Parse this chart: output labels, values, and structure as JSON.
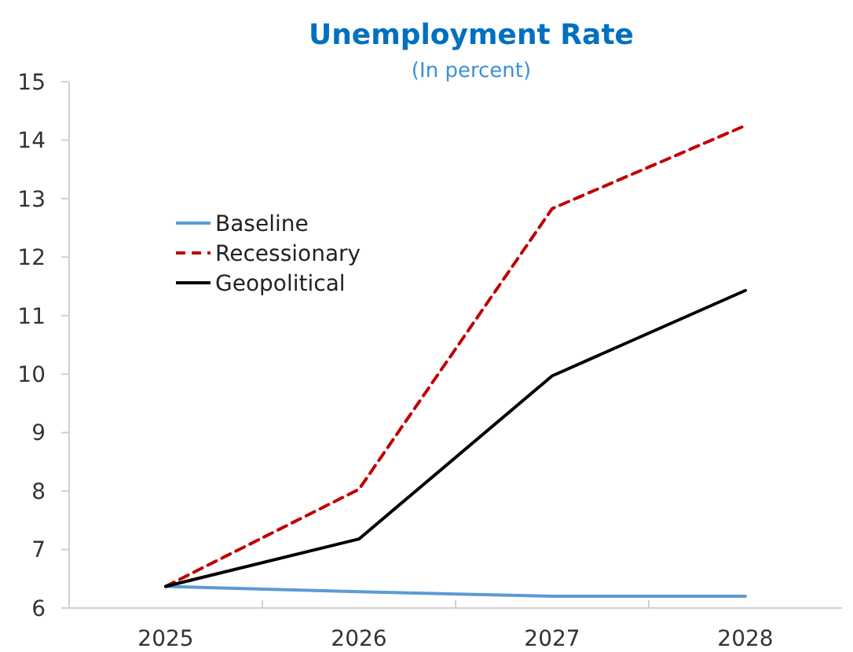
{
  "chart_data": {
    "type": "line",
    "title": "Unemployment Rate",
    "subtitle": "(In percent)",
    "categories": [
      "2025",
      "2026",
      "2027",
      "2028"
    ],
    "series": [
      {
        "name": "Baseline",
        "color": "#5b9bd5",
        "values": [
          6.37,
          6.28,
          6.2,
          6.2
        ],
        "line_style": "solid"
      },
      {
        "name": "Recessionary",
        "color": "#c00000",
        "values": [
          6.37,
          8.03,
          12.83,
          14.25
        ],
        "line_style": "dashed"
      },
      {
        "name": "Geopolitical",
        "color": "#000000",
        "values": [
          6.37,
          7.18,
          9.97,
          11.43
        ],
        "line_style": "solid"
      }
    ],
    "ylim": [
      6,
      15
    ],
    "yticks": [
      6,
      7,
      8,
      9,
      10,
      11,
      12,
      13,
      14,
      15
    ],
    "grid": false,
    "legend": "top left",
    "marker": "none"
  }
}
